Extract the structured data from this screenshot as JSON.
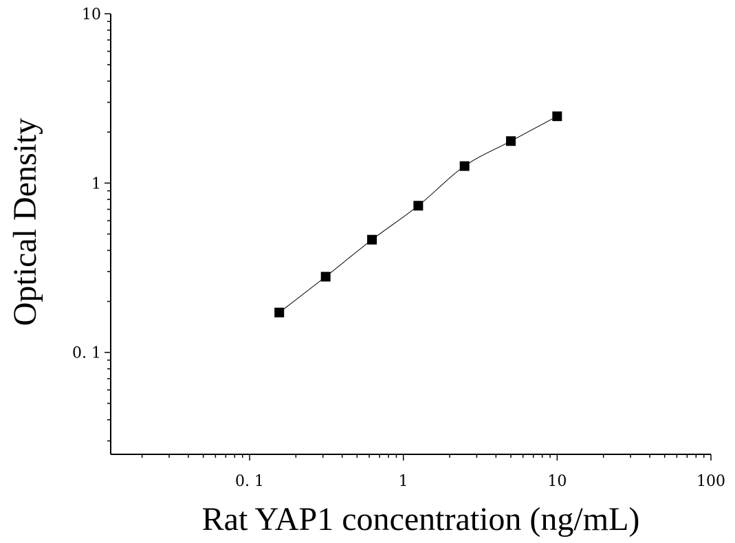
{
  "chart_data": {
    "type": "scatter",
    "xlabel": "Rat YAP1 concentration (ng/mL)",
    "ylabel": "Optical Density",
    "xscale": "log",
    "yscale": "log",
    "xlim": [
      0.0125,
      100
    ],
    "ylim": [
      0.025,
      10
    ],
    "x_ticks": [
      {
        "value": 0.1,
        "label": "0. 1"
      },
      {
        "value": 1,
        "label": "1"
      },
      {
        "value": 10,
        "label": "10"
      },
      {
        "value": 100,
        "label": "100"
      }
    ],
    "y_ticks": [
      {
        "value": 0.1,
        "label": "0. 1"
      },
      {
        "value": 1,
        "label": "1"
      },
      {
        "value": 10,
        "label": "10"
      }
    ],
    "grid": false,
    "marker": "square",
    "marker_color": "#000000",
    "curve_color": "#000000",
    "series": [
      {
        "points": [
          {
            "x": 0.156,
            "y": 0.172
          },
          {
            "x": 0.3125,
            "y": 0.28
          },
          {
            "x": 0.625,
            "y": 0.463
          },
          {
            "x": 1.25,
            "y": 0.735
          },
          {
            "x": 2.5,
            "y": 1.26
          },
          {
            "x": 5,
            "y": 1.77
          },
          {
            "x": 10,
            "y": 2.48
          }
        ]
      }
    ]
  }
}
